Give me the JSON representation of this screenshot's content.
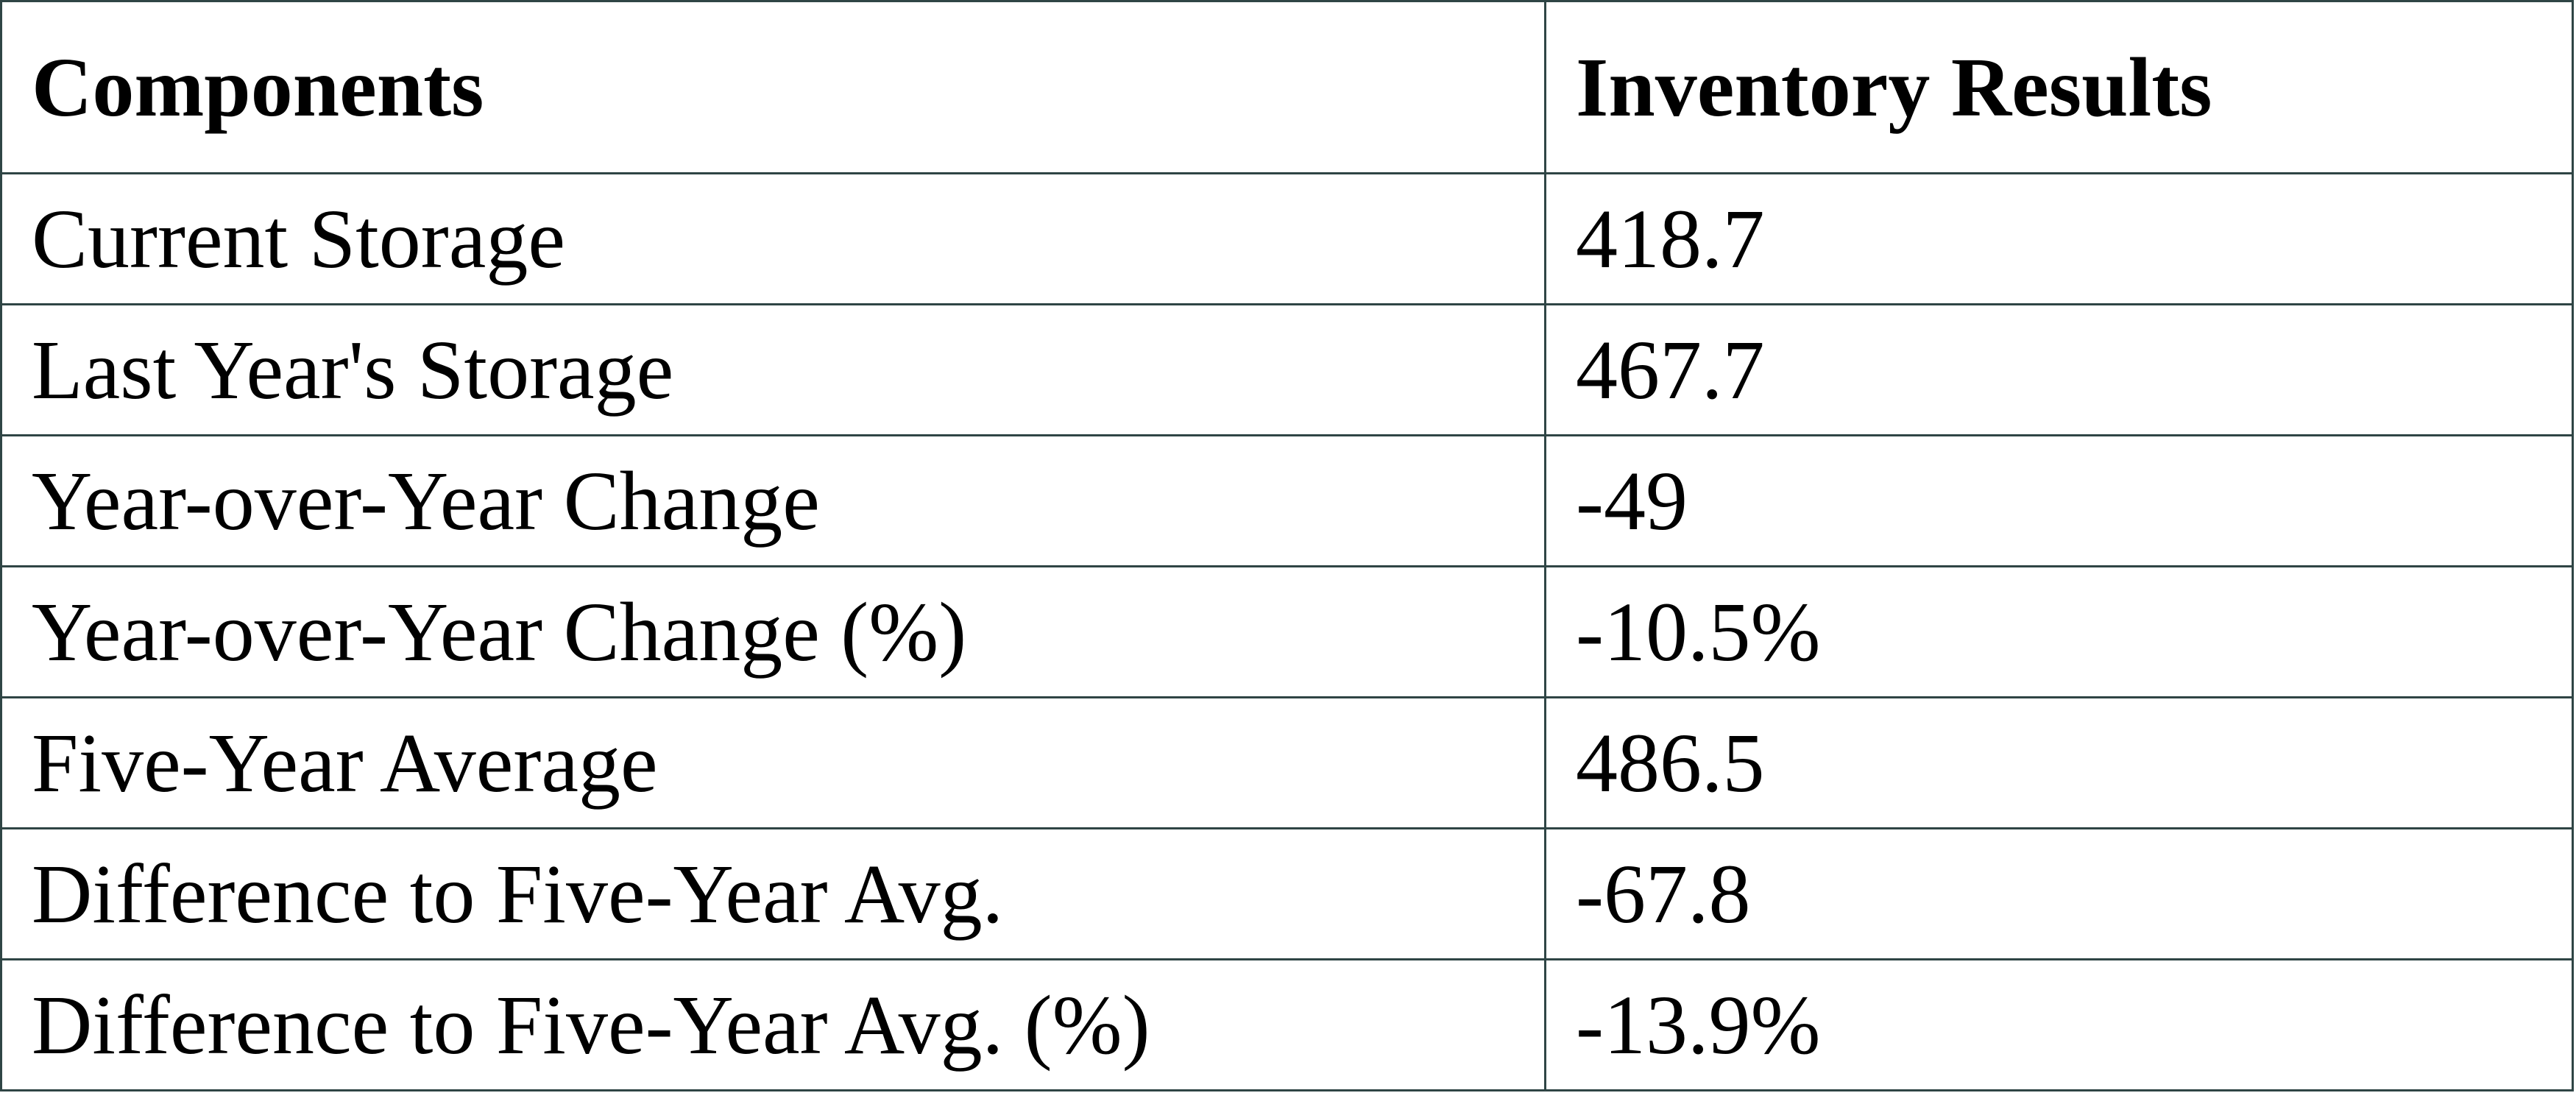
{
  "table": {
    "header": [
      "Components",
      "Inventory Results"
    ],
    "rows": [
      [
        "Current Storage",
        "418.7"
      ],
      [
        "Last Year's Storage",
        "467.7"
      ],
      [
        "Year-over-Year Change",
        "-49"
      ],
      [
        "Year-over-Year Change (%)",
        "-10.5%"
      ],
      [
        "Five-Year Average",
        "486.5"
      ],
      [
        "Difference to Five-Year Avg.",
        "-67.8"
      ],
      [
        "Difference to Five-Year Avg. (%)",
        "-13.9%"
      ]
    ]
  }
}
